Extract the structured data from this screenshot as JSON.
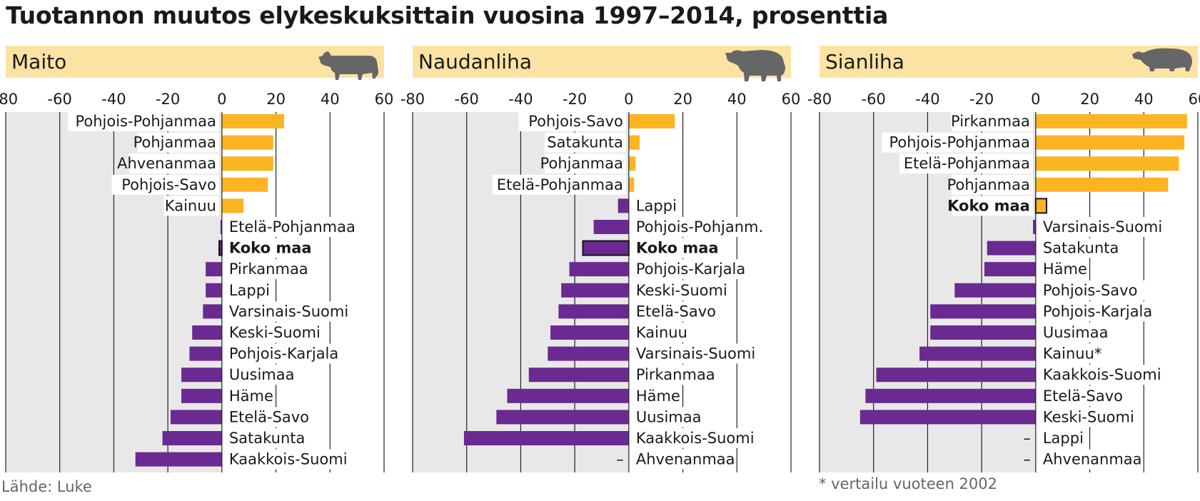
{
  "title": "Tuotannon muutos elykeskuksittain vuosina 1997–2014, prosenttia",
  "source": "Lähde: Luke",
  "footnote": "* vertailu vuoteen 2002",
  "colors": {
    "positive": "#fcb421",
    "negative": "#6a2a91",
    "header_band": "#fce3a3",
    "plot_bg": "#e8e8e8",
    "animal": "#666666"
  },
  "chart_data": [
    {
      "type": "bar",
      "title": "Maito",
      "icon": "cow-icon",
      "xlim": [
        -80,
        60
      ],
      "ticks": [
        -80,
        -60,
        -40,
        -20,
        0,
        20,
        40,
        60
      ],
      "highlight": "Koko maa",
      "categories": [
        "Pohjois-Pohjanmaa",
        "Pohjanmaa",
        "Ahvenanmaa",
        "Pohjois-Savo",
        "Kainuu",
        "Etelä-Pohjanmaa",
        "Koko maa",
        "Pirkanmaa",
        "Lappi",
        "Varsinais-Suomi",
        "Keski-Suomi",
        "Pohjois-Karjala",
        "Uusimaa",
        "Häme",
        "Etelä-Savo",
        "Satakunta",
        "Kaakkois-Suomi"
      ],
      "values": [
        23,
        19,
        19,
        17,
        8,
        -0.5,
        -1,
        -6,
        -6,
        -7,
        -11,
        -12,
        -15,
        -15,
        -19,
        -22,
        -32
      ]
    },
    {
      "type": "bar",
      "title": "Naudanliha",
      "icon": "bull-icon",
      "xlim": [
        -80,
        60
      ],
      "ticks": [
        -80,
        -60,
        -40,
        -20,
        0,
        20,
        40,
        60
      ],
      "highlight": "Koko maa",
      "categories": [
        "Pohjois-Savo",
        "Satakunta",
        "Pohjanmaa",
        "Etelä-Pohjanmaa",
        "Lappi",
        "Pohjois-Pohjanm.",
        "Koko maa",
        "Pohjois-Karjala",
        "Keski-Suomi",
        "Etelä-Savo",
        "Kainuu",
        "Varsinais-Suomi",
        "Pirkanmaa",
        "Häme",
        "Uusimaa",
        "Kaakkois-Suomi",
        "Ahvenanmaa"
      ],
      "values": [
        17,
        4,
        2.5,
        2,
        -4,
        -13,
        -17,
        -22,
        -25,
        -26,
        -29,
        -30,
        -37,
        -45,
        -49,
        -61,
        null
      ]
    },
    {
      "type": "bar",
      "title": "Sianliha",
      "icon": "pig-icon",
      "xlim": [
        -80,
        60
      ],
      "ticks": [
        -80,
        -60,
        -40,
        -20,
        0,
        20,
        40,
        60
      ],
      "highlight": "Koko maa",
      "categories": [
        "Pirkanmaa",
        "Pohjois-Pohjanmaa",
        "Etelä-Pohjanmaa",
        "Pohjanmaa",
        "Koko maa",
        "Varsinais-Suomi",
        "Satakunta",
        "Häme",
        "Pohjois-Savo",
        "Pohjois-Karjala",
        "Uusimaa",
        "Kainuu*",
        "Kaakkois-Suomi",
        "Etelä-Savo",
        "Keski-Suomi",
        "Lappi",
        "Ahvenanmaa"
      ],
      "values": [
        56,
        55,
        53,
        49,
        4,
        -1,
        -18,
        -19,
        -30,
        -39,
        -39,
        -43,
        -59,
        -63,
        -65,
        null,
        null
      ]
    }
  ]
}
